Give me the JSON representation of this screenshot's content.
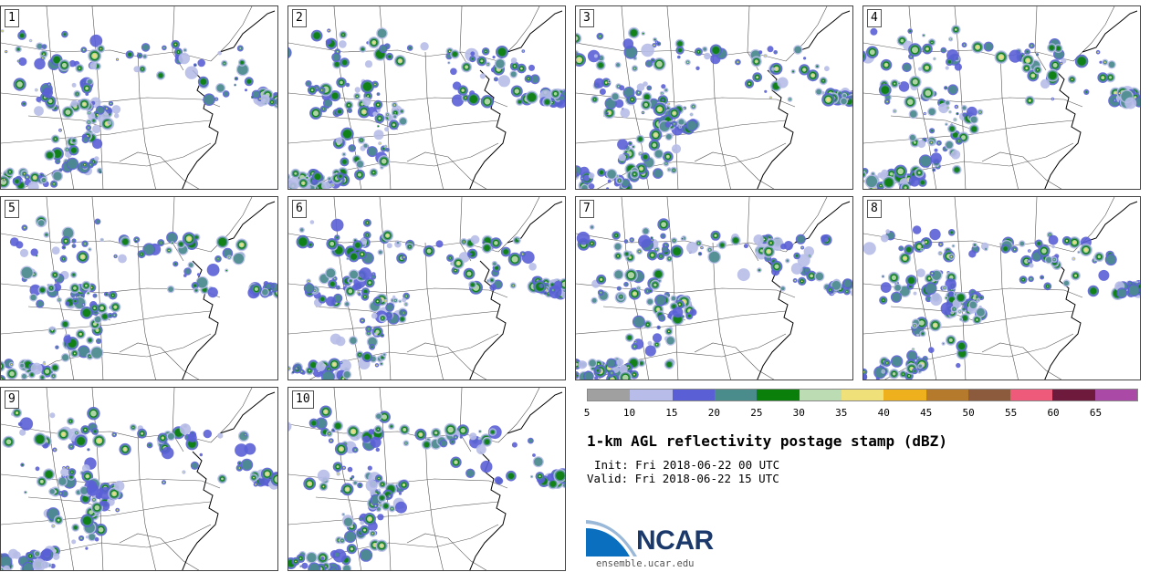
{
  "panels": [
    {
      "id": "1",
      "seed": 11
    },
    {
      "id": "2",
      "seed": 23
    },
    {
      "id": "3",
      "seed": 37
    },
    {
      "id": "4",
      "seed": 41
    },
    {
      "id": "5",
      "seed": 53
    },
    {
      "id": "6",
      "seed": 67
    },
    {
      "id": "7",
      "seed": 71
    },
    {
      "id": "8",
      "seed": 83
    },
    {
      "id": "9",
      "seed": 97
    },
    {
      "id": "10",
      "seed": 103
    }
  ],
  "legend": {
    "colors": [
      "#a0a0a0",
      "#b7bce8",
      "#5a5fd6",
      "#4a8c8c",
      "#0a7f0a",
      "#bcdcb4",
      "#efe07a",
      "#eeb01c",
      "#b57a2c",
      "#8c5a3c",
      "#ee5a7a",
      "#6e1a3c",
      "#aa4aa6"
    ],
    "ticks": [
      "5",
      "10",
      "15",
      "20",
      "25",
      "30",
      "35",
      "40",
      "45",
      "50",
      "55",
      "60",
      "65"
    ]
  },
  "title": "1-km AGL reflectivity postage stamp (dBZ)",
  "init": "Init: Fri 2018-06-22 00 UTC",
  "valid": "Valid: Fri 2018-06-22 15 UTC",
  "logo": {
    "text": "NCAR"
  },
  "url": "ensemble.ucar.edu"
}
